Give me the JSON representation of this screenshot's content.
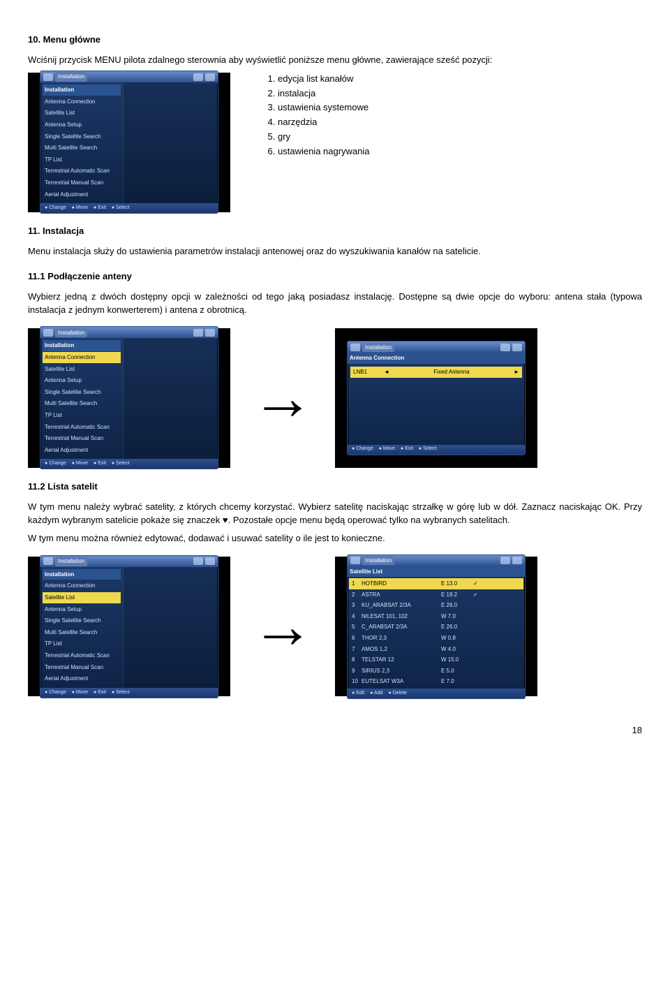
{
  "sections": {
    "s10": {
      "title": "10. Menu główne",
      "intro": "Wciśnij przycisk MENU pilota zdalnego sterownia aby wyświetlić poniższe menu główne, zawierające sześć pozycji:",
      "list": [
        "edycja list kanałów",
        "instalacja",
        "ustawienia systemowe",
        "narzędzia",
        "gry",
        "ustawienia nagrywania"
      ]
    },
    "s11": {
      "title": "11. Instalacja",
      "body": "Menu instalacja służy do ustawienia parametrów instalacji antenowej oraz do wyszukiwania kanałów na satelicie."
    },
    "s111": {
      "title": "11.1 Podłączenie anteny",
      "body": "Wybierz jedną z dwóch dostępny opcji w zależności od tego jaką posiadasz instalację. Dostępne są dwie opcje do wyboru: antena stała (typowa instalacja z jednym konwerterem) i antena z obrotnicą."
    },
    "s112": {
      "title": "11.2 Lista satelit",
      "body": "W tym menu należy wybrać satelity, z których chcemy korzystać. Wybierz satelitę naciskając strzałkę w górę lub w dół. Zaznacz naciskając OK. Przy każdym wybranym satelicie pokaże się znaczek ♥. Pozostałe opcje menu będą operować tylko na wybranych satelitach.",
      "body2": "W tym menu można również edytować, dodawać i usuwać satelity o ile jest to konieczne."
    }
  },
  "screenshots": {
    "titlebar": "Installation",
    "sidebar": [
      "Installation",
      "Antenna Connection",
      "Satellite List",
      "Antenna Setup",
      "Single Satellite Search",
      "Multi Satellite Search",
      "TP List",
      "Terrestrial Automatic Scan",
      "Terrestrial Manual Scan",
      "Aerial Adjustment"
    ],
    "sidebar_hl_conn": 1,
    "sidebar_hl_sat": 2,
    "footer_install": [
      "Change",
      "Move",
      "Exit",
      "Select"
    ],
    "antenna_conn": {
      "label": "LNB1",
      "value": "Fixed Antenna",
      "footer": [
        "Change",
        "Move",
        "Exit",
        "Select"
      ]
    },
    "satlist": {
      "rows": [
        {
          "n": "1",
          "name": "HOTBIRD",
          "pos": "E 13.0",
          "m": "✓"
        },
        {
          "n": "2",
          "name": "ASTRA",
          "pos": "E 19.2",
          "m": "✓"
        },
        {
          "n": "3",
          "name": "KU_ARABSAT 2/3A",
          "pos": "E 26.0",
          "m": ""
        },
        {
          "n": "4",
          "name": "NILESAT 101, 102",
          "pos": "W 7.0",
          "m": ""
        },
        {
          "n": "5",
          "name": "C_ARABSAT 2/3A",
          "pos": "E 26.0",
          "m": ""
        },
        {
          "n": "6",
          "name": "THOR 2,3",
          "pos": "W 0.8",
          "m": ""
        },
        {
          "n": "7",
          "name": "AMOS 1,2",
          "pos": "W 4.0",
          "m": ""
        },
        {
          "n": "8",
          "name": "TELSTAR 12",
          "pos": "W 15.0",
          "m": ""
        },
        {
          "n": "9",
          "name": "SIRIUS 2,3",
          "pos": "E 5.0",
          "m": ""
        },
        {
          "n": "10",
          "name": "EUTELSAT W3A",
          "pos": "E 7.0",
          "m": ""
        }
      ],
      "footer": [
        "Edit",
        "Add",
        "Delete"
      ]
    }
  },
  "page_number": "18",
  "colors": {
    "highlight": "#f0d94e",
    "panel_top": "#1d3a6a",
    "panel_bottom": "#0d2244",
    "text_light": "#cfe0ff"
  }
}
